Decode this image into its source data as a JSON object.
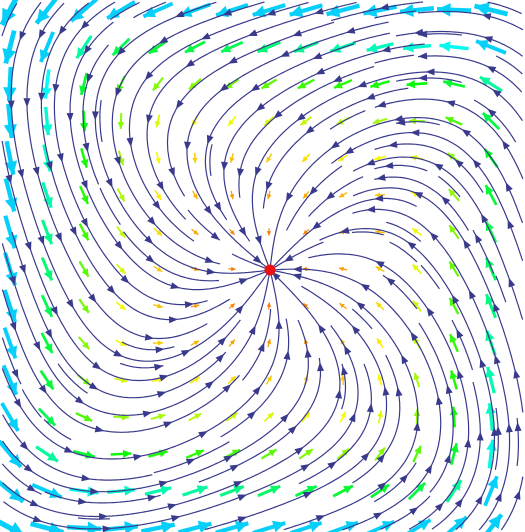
{
  "chart_data": {
    "type": "streamplot",
    "stream_color": "#3a3a8c",
    "point_color": "#ee1111"
  }
}
